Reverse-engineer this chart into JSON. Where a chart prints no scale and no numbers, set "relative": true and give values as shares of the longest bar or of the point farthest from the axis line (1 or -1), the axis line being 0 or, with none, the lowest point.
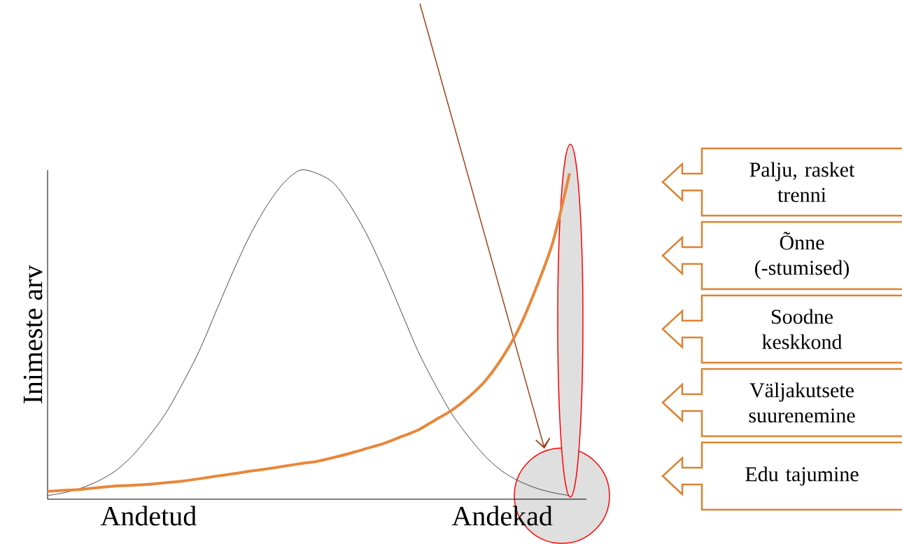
{
  "chart_data": {
    "type": "line",
    "relative": true,
    "ylabel": "Inimeste arv",
    "categories": [
      null,
      null,
      null,
      null,
      null,
      null,
      "Andetud",
      null,
      null,
      null,
      null,
      null,
      null,
      null,
      null,
      null,
      null,
      null,
      null,
      null,
      null,
      null,
      null,
      null,
      null,
      null,
      null,
      "Andekad",
      null,
      null,
      null,
      null,
      null
    ],
    "series": [
      {
        "color": "#333333",
        "values": [
          0.011,
          0.02,
          0.034,
          0.055,
          0.085,
          0.13,
          0.19,
          0.26,
          0.35,
          0.45,
          0.57,
          0.69,
          0.8,
          0.89,
          0.96,
          1,
          0.99,
          0.96,
          0.89,
          0.8,
          0.69,
          0.57,
          0.45,
          0.35,
          0.26,
          0.19,
          0.13,
          0.085,
          0.055,
          0.034,
          0.02,
          0.011,
          null
        ]
      },
      {
        "color": "#e8873a",
        "values": [
          0.024,
          0.027,
          0.03,
          0.035,
          0.04,
          0.042,
          0.045,
          0.05,
          0.055,
          0.062,
          0.07,
          0.077,
          0.085,
          0.092,
          0.1,
          0.108,
          0.115,
          0.127,
          0.14,
          0.155,
          0.17,
          0.19,
          0.21,
          0.24,
          0.27,
          0.31,
          0.36,
          0.43,
          0.52,
          0.64,
          0.78,
          0.99,
          null
        ]
      }
    ],
    "annotations": [
      "Palju, rasket trenni",
      "Õnne (-stumised)",
      "Soodne keskkond",
      "Väljakutsete suurenemine",
      "Edu tajumine"
    ],
    "marker": "none",
    "line_style": "solid",
    "grid": false
  }
}
